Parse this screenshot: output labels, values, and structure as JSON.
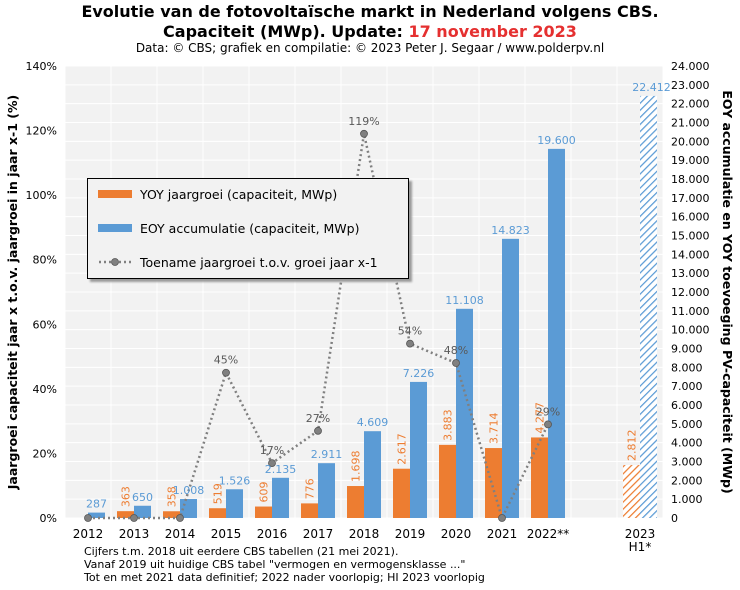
{
  "title": {
    "line1": "Evolutie van de fotovoltaïsche markt in Nederland volgens CBS.",
    "line2_prefix": "Capaciteit (MWp). Update: ",
    "line2_highlight": "17 november 2023",
    "source": "Data: © CBS; grafiek en compilatie: © 2023 Peter J. Segaar / www.polderpv.nl"
  },
  "colors": {
    "yoy": "#ed7d31",
    "eoy": "#5b9bd5",
    "growth_line": "#808080",
    "highlight": "#e53030",
    "plot_bg": "#f2f2f2",
    "grid": "#ffffff"
  },
  "legend": {
    "yoy": "YOY jaargroei (capaciteit, MWp)",
    "eoy": "EOY accumulatie (capaciteit, MWp)",
    "growth": "Toename jaargroei t.o.v. groei jaar x-1"
  },
  "chart_data": {
    "type": "bar",
    "categories": [
      "2012",
      "2013",
      "2014",
      "2015",
      "2016",
      "2017",
      "2018",
      "2019",
      "2020",
      "2021",
      "2022**",
      "",
      "2023 H1*"
    ],
    "xtick_labels": [
      "2012",
      "2013",
      "2014",
      "2015",
      "2016",
      "2017",
      "2018",
      "2019",
      "2020",
      "2021",
      "2022**",
      "",
      "2023"
    ],
    "xtick_sub": "H1*",
    "series": [
      {
        "name": "YOY jaargroei (capaciteit, MWp)",
        "axis": "right",
        "values": [
          null,
          363,
          358,
          519,
          609,
          776,
          1698,
          2617,
          3883,
          3714,
          4277,
          null,
          2812
        ],
        "labels": [
          "",
          "363",
          "358",
          "519",
          "609",
          "776",
          "1.698",
          "2.617",
          "3.883",
          "3.714",
          "4.277",
          "",
          "2.812"
        ]
      },
      {
        "name": "EOY accumulatie (capaciteit, MWp)",
        "axis": "right",
        "values": [
          287,
          650,
          1008,
          1526,
          2135,
          2911,
          4609,
          7226,
          11108,
          14823,
          19600,
          null,
          22412
        ],
        "labels": [
          "287",
          "650",
          "1.008",
          "1.526",
          "2.135",
          "2.911",
          "4.609",
          "7.226",
          "11.108",
          "14.823",
          "19.600",
          "",
          "22.412"
        ]
      },
      {
        "name": "Toename jaargroei t.o.v. groei jaar x-1",
        "axis": "left",
        "type": "line",
        "values": [
          0,
          0,
          0,
          45,
          17,
          27,
          119,
          54,
          48,
          0,
          29,
          null,
          null
        ],
        "labels": [
          "",
          "",
          "",
          "45%",
          "17%",
          "27%",
          "119%",
          "54%",
          "48%",
          "",
          "29%",
          "",
          ""
        ]
      }
    ],
    "hatched_category": "2023 H1*",
    "ylabel_left": "Jaargroei capaciteit jaar x t.o.v. jaargroei in jaar x-1 (%)",
    "ylabel_right": "EOY accumulatie en YOY toevoeging PV-capaciteit (MWp)",
    "ylim_left": [
      0,
      140
    ],
    "ylim_right": [
      0,
      24000
    ],
    "left_ticks": [
      "0%",
      "20%",
      "40%",
      "60%",
      "80%",
      "100%",
      "120%",
      "140%"
    ],
    "right_ticks": [
      "0",
      "1.000",
      "2.000",
      "3.000",
      "4.000",
      "5.000",
      "6.000",
      "7.000",
      "8.000",
      "9.000",
      "10.000",
      "11.000",
      "12.000",
      "13.000",
      "14.000",
      "15.000",
      "16.000",
      "17.000",
      "18.000",
      "19.000",
      "20.000",
      "21.000",
      "22.000",
      "23.000",
      "24.000"
    ],
    "grid": true
  },
  "notes": [
    "Cijfers t.m. 2018 uit eerdere CBS tabellen (21 mei 2021).",
    "Vanaf 2019 uit huidige CBS tabel \"vermogen en vermogensklasse ...\"",
    "Tot en met 2021 data definitief; 2022 nader voorlopig; HI 2023 voorlopig"
  ]
}
